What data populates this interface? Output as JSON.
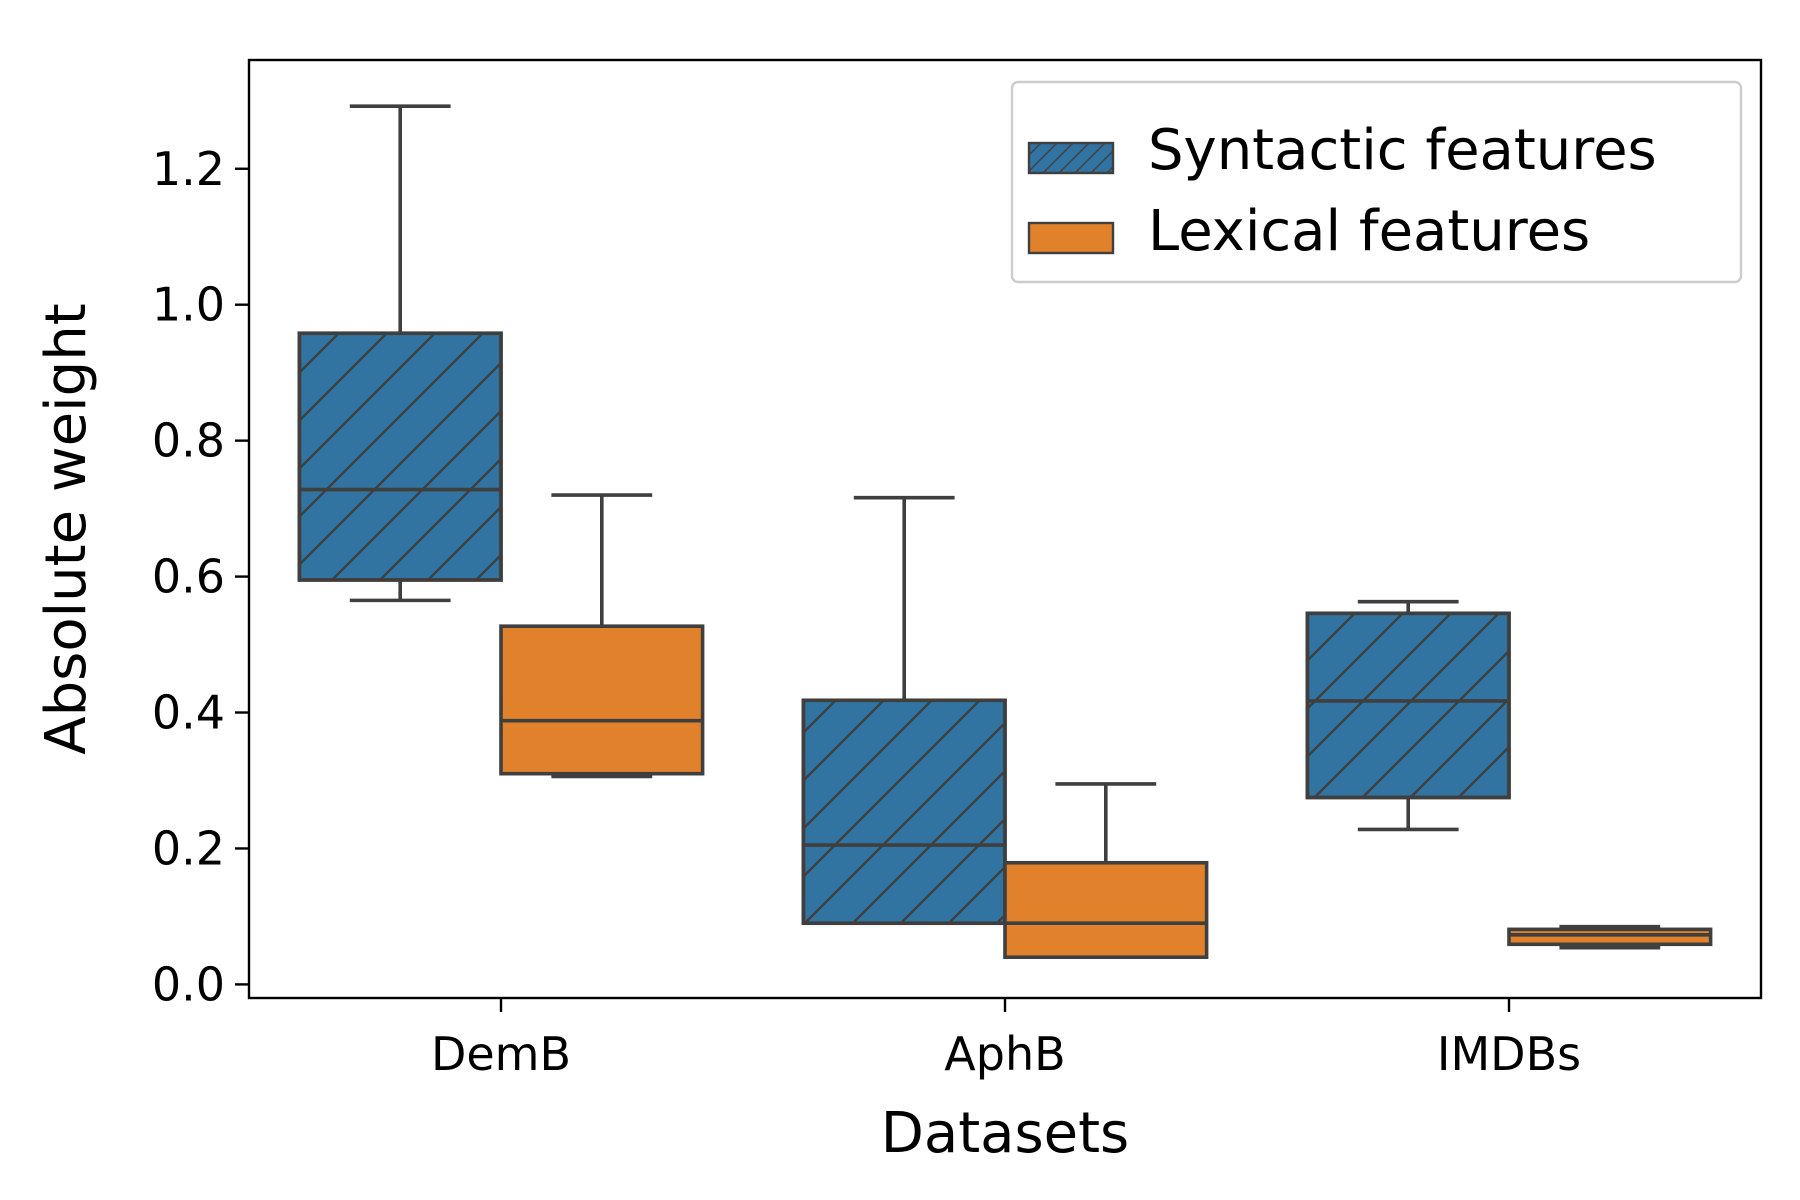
{
  "chart_data": {
    "type": "box",
    "title": "",
    "xlabel": "Datasets",
    "ylabel": "Absolute weight",
    "categories": [
      "DemB",
      "AphB",
      "IMDBs"
    ],
    "ylim": [
      -0.02,
      1.36
    ],
    "yticks": [
      0.0,
      0.2,
      0.4,
      0.6,
      0.8,
      1.0,
      1.2
    ],
    "ytick_labels": [
      "0.0",
      "0.2",
      "0.4",
      "0.6",
      "0.8",
      "1.0",
      "1.2"
    ],
    "grid": false,
    "legend": {
      "placement": "top-right",
      "title": "",
      "entries": [
        "Syntactic features",
        "Lexical features"
      ]
    },
    "series": [
      {
        "name": "Syntactic features",
        "color": "#3274a1",
        "hatch": "diagonal",
        "boxes": [
          {
            "category": "DemB",
            "whisker_low": 0.565,
            "q1": 0.595,
            "median": 0.728,
            "q3": 0.958,
            "whisker_high": 1.292
          },
          {
            "category": "AphB",
            "whisker_low": 0.09,
            "q1": 0.09,
            "median": 0.205,
            "q3": 0.418,
            "whisker_high": 0.716
          },
          {
            "category": "IMDBs",
            "whisker_low": 0.228,
            "q1": 0.275,
            "median": 0.417,
            "q3": 0.546,
            "whisker_high": 0.563
          }
        ]
      },
      {
        "name": "Lexical features",
        "color": "#e1812c",
        "hatch": "none",
        "boxes": [
          {
            "category": "DemB",
            "whisker_low": 0.306,
            "q1": 0.31,
            "median": 0.388,
            "q3": 0.527,
            "whisker_high": 0.72
          },
          {
            "category": "AphB",
            "whisker_low": 0.04,
            "q1": 0.04,
            "median": 0.09,
            "q3": 0.179,
            "whisker_high": 0.295
          },
          {
            "category": "IMDBs",
            "whisker_low": 0.054,
            "q1": 0.059,
            "median": 0.073,
            "q3": 0.081,
            "whisker_high": 0.085
          }
        ]
      }
    ]
  },
  "colors": {
    "box_edge": "#3f3f3f",
    "axis": "#000000"
  }
}
